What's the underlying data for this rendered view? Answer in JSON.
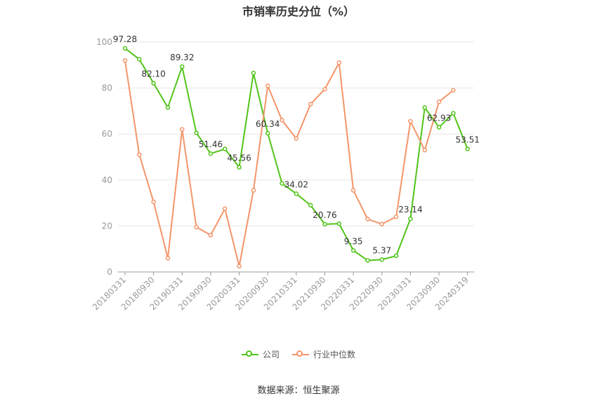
{
  "chart_data": {
    "type": "line",
    "title": "市销率历史分位（%）",
    "x": [
      "20180331",
      "20180630",
      "20180930",
      "20181231",
      "20190331",
      "20190630",
      "20190930",
      "20191231",
      "20200331",
      "20200630",
      "20200930",
      "20201231",
      "20210331",
      "20210630",
      "20210930",
      "20211231",
      "20220331",
      "20220630",
      "20220930",
      "20221231",
      "20230331",
      "20230630",
      "20230930",
      "20231231",
      "20240319"
    ],
    "x_tick_labels": [
      "20180331",
      "20180930",
      "20190331",
      "20190930",
      "20200331",
      "20200930",
      "20210331",
      "20210930",
      "20220331",
      "20220930",
      "20230331",
      "20230930",
      "20240319"
    ],
    "ylim": [
      0,
      100
    ],
    "y_ticks": [
      0,
      20,
      40,
      60,
      80,
      100
    ],
    "grid": true,
    "legend_position": "bottom",
    "series": [
      {
        "name": "公司",
        "color": "#52c41a",
        "values": [
          97.28,
          92.5,
          82.1,
          71.5,
          89.32,
          60.5,
          51.46,
          53.5,
          45.56,
          86.5,
          60.34,
          38.5,
          34.02,
          29.0,
          20.76,
          21.0,
          9.35,
          5.0,
          5.37,
          7.0,
          23.14,
          71.5,
          62.93,
          69.0,
          53.51
        ]
      },
      {
        "name": "行业中位数",
        "color": "#f4956a",
        "values": [
          92.0,
          51.0,
          30.5,
          6.0,
          62.0,
          19.5,
          16.0,
          27.5,
          2.5,
          35.5,
          81.0,
          66.0,
          58.0,
          73.0,
          79.5,
          91.0,
          35.5,
          23.0,
          20.8,
          24.0,
          65.5,
          53.0,
          74.0,
          79.0,
          null
        ]
      }
    ],
    "data_labels": [
      {
        "index": 0,
        "text": "97.28"
      },
      {
        "index": 2,
        "text": "82.10"
      },
      {
        "index": 4,
        "text": "89.32"
      },
      {
        "index": 6,
        "text": "51.46"
      },
      {
        "index": 8,
        "text": "45.56"
      },
      {
        "index": 10,
        "text": "60.34"
      },
      {
        "index": 12,
        "text": "34.02"
      },
      {
        "index": 14,
        "text": "20.76"
      },
      {
        "index": 16,
        "text": "9.35"
      },
      {
        "index": 18,
        "text": "5.37"
      },
      {
        "index": 20,
        "text": "23.14"
      },
      {
        "index": 22,
        "text": "62.93"
      },
      {
        "index": 24,
        "text": "53.51"
      }
    ]
  },
  "source": "数据来源：恒生聚源"
}
